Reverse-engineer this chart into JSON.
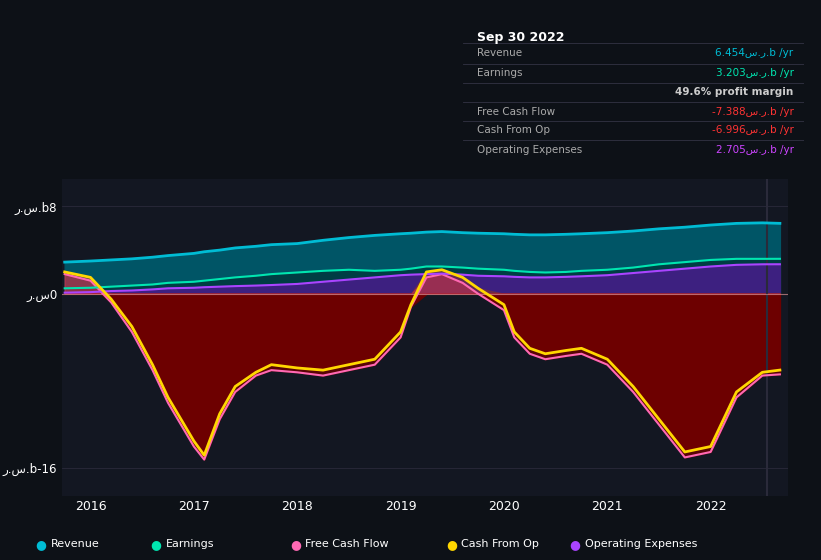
{
  "bg_color": "#0d1117",
  "plot_bg_color": "#131722",
  "title": "Sep 30 2022",
  "legend": [
    {
      "label": "Revenue",
      "color": "#00bcd4"
    },
    {
      "label": "Earnings",
      "color": "#00e5b0"
    },
    {
      "label": "Free Cash Flow",
      "color": "#ff69b4"
    },
    {
      "label": "Cash From Op",
      "color": "#ffd700"
    },
    {
      "label": "Operating Expenses",
      "color": "#aa44ff"
    }
  ],
  "time": [
    2015.75,
    2016.0,
    2016.1,
    2016.2,
    2016.4,
    2016.6,
    2016.75,
    2017.0,
    2017.1,
    2017.25,
    2017.4,
    2017.6,
    2017.75,
    2018.0,
    2018.25,
    2018.5,
    2018.75,
    2019.0,
    2019.1,
    2019.25,
    2019.4,
    2019.6,
    2019.75,
    2020.0,
    2020.1,
    2020.25,
    2020.4,
    2020.6,
    2020.75,
    2021.0,
    2021.25,
    2021.5,
    2021.75,
    2022.0,
    2022.25,
    2022.5,
    2022.67
  ],
  "revenue": [
    2.9,
    3.0,
    3.05,
    3.1,
    3.2,
    3.35,
    3.5,
    3.7,
    3.85,
    4.0,
    4.2,
    4.35,
    4.5,
    4.6,
    4.9,
    5.15,
    5.35,
    5.5,
    5.55,
    5.65,
    5.7,
    5.6,
    5.55,
    5.5,
    5.45,
    5.4,
    5.4,
    5.45,
    5.5,
    5.6,
    5.75,
    5.95,
    6.1,
    6.3,
    6.45,
    6.5,
    6.454
  ],
  "earnings": [
    0.5,
    0.55,
    0.6,
    0.65,
    0.75,
    0.85,
    1.0,
    1.1,
    1.2,
    1.35,
    1.5,
    1.65,
    1.8,
    1.95,
    2.1,
    2.2,
    2.1,
    2.2,
    2.3,
    2.5,
    2.5,
    2.4,
    2.3,
    2.2,
    2.1,
    2.0,
    1.95,
    2.0,
    2.1,
    2.2,
    2.4,
    2.7,
    2.9,
    3.1,
    3.2,
    3.2,
    3.203
  ],
  "op_expenses": [
    0.1,
    0.15,
    0.2,
    0.25,
    0.3,
    0.4,
    0.5,
    0.55,
    0.6,
    0.65,
    0.7,
    0.75,
    0.8,
    0.9,
    1.1,
    1.3,
    1.5,
    1.7,
    1.75,
    1.8,
    1.85,
    1.75,
    1.65,
    1.6,
    1.55,
    1.5,
    1.5,
    1.55,
    1.6,
    1.7,
    1.9,
    2.1,
    2.3,
    2.5,
    2.65,
    2.7,
    2.705
  ],
  "cash_from_op": [
    2.0,
    1.5,
    0.5,
    -0.5,
    -3.0,
    -6.5,
    -9.5,
    -13.5,
    -14.8,
    -11.0,
    -8.5,
    -7.2,
    -6.5,
    -6.8,
    -7.0,
    -6.5,
    -6.0,
    -3.5,
    -1.0,
    2.0,
    2.2,
    1.5,
    0.5,
    -1.0,
    -3.5,
    -5.0,
    -5.5,
    -5.2,
    -5.0,
    -6.0,
    -8.5,
    -11.5,
    -14.5,
    -14.0,
    -9.0,
    -7.2,
    -6.996
  ],
  "free_cash_flow": [
    1.8,
    1.2,
    0.2,
    -0.8,
    -3.5,
    -7.0,
    -10.0,
    -14.0,
    -15.2,
    -11.5,
    -9.0,
    -7.5,
    -7.0,
    -7.2,
    -7.5,
    -7.0,
    -6.5,
    -4.0,
    -1.2,
    1.5,
    1.8,
    1.0,
    0.0,
    -1.5,
    -4.0,
    -5.5,
    -6.0,
    -5.7,
    -5.5,
    -6.5,
    -9.0,
    -12.0,
    -15.0,
    -14.5,
    -9.5,
    -7.5,
    -7.388
  ]
}
